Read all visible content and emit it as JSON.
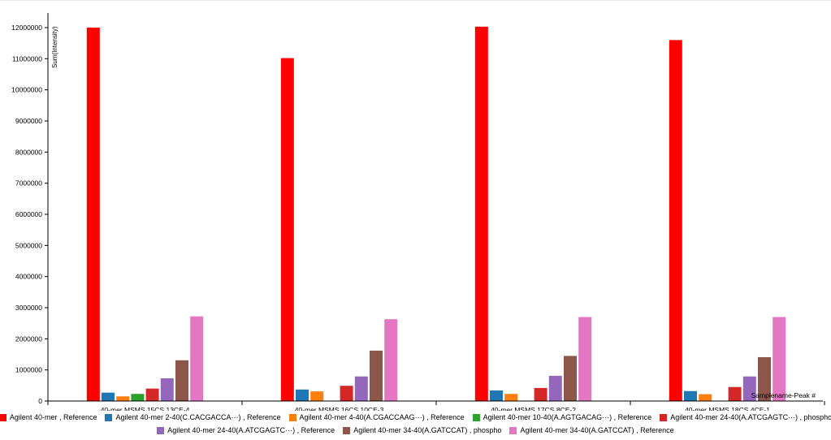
{
  "chart_data": {
    "type": "bar",
    "title": "",
    "xlabel": "Samplename-Peak #",
    "ylabel": "Sum(Intensity)",
    "ylim": [
      0,
      12000000
    ],
    "yticks": [
      "0",
      "1000000",
      "2000000",
      "3000000",
      "4000000",
      "5000000",
      "6000000",
      "7000000",
      "8000000",
      "9000000",
      "10000000",
      "11000000",
      "12000000"
    ],
    "grid": false,
    "legend_position": "bottom",
    "categories": [
      "40-mer MSMS 15CS 13CE-4",
      "40-mer MSMS 16CS 10CE-3",
      "40-mer MSMS 17CS 8CE-2",
      "40-mer MSMS 18CS 4CE-1"
    ],
    "series": [
      {
        "name": "Agilent 40-mer , Reference",
        "color": "#ff0000",
        "values": [
          12000000,
          11020000,
          12030000,
          11600000
        ]
      },
      {
        "name": "Agilent 40-mer 2-40(C.CACGACCA···) , Reference",
        "color": "#1f77b4",
        "values": [
          270000,
          370000,
          340000,
          320000
        ]
      },
      {
        "name": "Agilent 40-mer 4-40(A.CGACCAAG···) , Reference",
        "color": "#ff7f0e",
        "values": [
          150000,
          310000,
          230000,
          220000
        ]
      },
      {
        "name": "Agilent 40-mer 10-40(A.AGTGACAG···) , Reference",
        "color": "#2ca02c",
        "values": [
          230000,
          0,
          0,
          0
        ]
      },
      {
        "name": "Agilent 40-mer 24-40(A.ATCGAGTC···) , phospho",
        "color": "#d62728",
        "values": [
          400000,
          490000,
          420000,
          450000
        ]
      },
      {
        "name": "Agilent 40-mer 24-40(A.ATCGAGTC···) , Reference",
        "color": "#9467bd",
        "values": [
          730000,
          790000,
          810000,
          790000
        ]
      },
      {
        "name": "Agilent 40-mer 34-40(A.GATCCAT) , phospho",
        "color": "#8c564b",
        "values": [
          1310000,
          1620000,
          1450000,
          1410000
        ]
      },
      {
        "name": "Agilent 40-mer 34-40(A.GATCCAT) , Reference",
        "color": "#e377c2",
        "values": [
          2720000,
          2630000,
          2700000,
          2700000
        ]
      }
    ]
  }
}
